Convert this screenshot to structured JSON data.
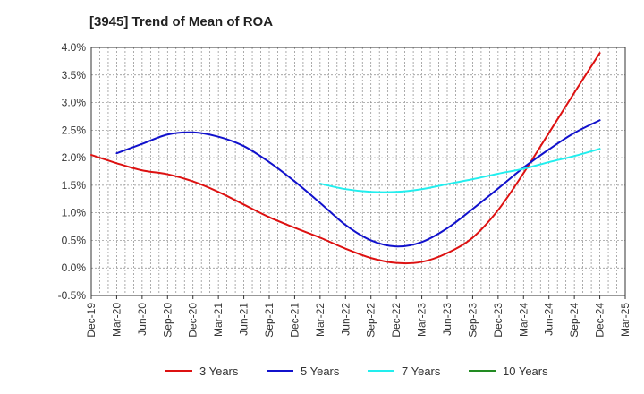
{
  "chart_data": {
    "type": "line",
    "title": "[3945]  Trend of Mean of ROA",
    "xlabel": "",
    "ylabel": "",
    "x": [
      "Dec-19",
      "Mar-20",
      "Jun-20",
      "Sep-20",
      "Dec-20",
      "Mar-21",
      "Jun-21",
      "Sep-21",
      "Dec-21",
      "Mar-22",
      "Jun-22",
      "Sep-22",
      "Dec-22",
      "Mar-23",
      "Jun-23",
      "Sep-23",
      "Dec-23",
      "Mar-24",
      "Jun-24",
      "Sep-24",
      "Dec-24",
      "Mar-25"
    ],
    "ylim": [
      -0.5,
      4.0
    ],
    "yticks": [
      -0.5,
      0.0,
      0.5,
      1.0,
      1.5,
      2.0,
      2.5,
      3.0,
      3.5,
      4.0
    ],
    "ytick_labels": [
      "-0.5%",
      "0.0%",
      "0.5%",
      "1.0%",
      "1.5%",
      "2.0%",
      "2.5%",
      "3.0%",
      "3.5%",
      "4.0%"
    ],
    "grid": true,
    "legend_position": "bottom",
    "series": [
      {
        "name": "3 Years",
        "color": "#dd1111",
        "values": [
          2.05,
          1.9,
          1.77,
          1.7,
          1.57,
          1.38,
          1.15,
          0.92,
          0.73,
          0.55,
          0.35,
          0.18,
          0.09,
          0.11,
          0.27,
          0.55,
          1.05,
          1.72,
          2.45,
          3.18,
          3.9,
          null
        ]
      },
      {
        "name": "5 Years",
        "color": "#1111cc",
        "values": [
          null,
          2.08,
          2.25,
          2.42,
          2.46,
          2.38,
          2.21,
          1.92,
          1.57,
          1.18,
          0.78,
          0.5,
          0.39,
          0.47,
          0.72,
          1.07,
          1.44,
          1.82,
          2.15,
          2.45,
          2.68,
          null
        ]
      },
      {
        "name": "7 Years",
        "color": "#22eeee",
        "values": [
          null,
          null,
          null,
          null,
          null,
          null,
          null,
          null,
          null,
          1.53,
          1.43,
          1.38,
          1.38,
          1.43,
          1.52,
          1.61,
          1.71,
          1.8,
          1.92,
          2.03,
          2.16,
          null
        ]
      },
      {
        "name": "10 Years",
        "color": "#228b22",
        "values": [
          null,
          null,
          null,
          null,
          null,
          null,
          null,
          null,
          null,
          null,
          null,
          null,
          null,
          null,
          null,
          null,
          null,
          null,
          null,
          null,
          null,
          null
        ]
      }
    ]
  }
}
